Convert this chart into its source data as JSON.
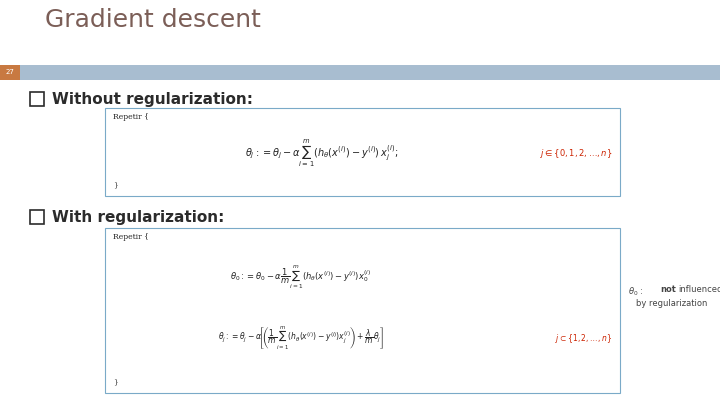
{
  "title": "Gradient descent",
  "slide_number": "27",
  "title_color": "#7B5E57",
  "title_fontsize": 18,
  "slide_number_bg": "#C87941",
  "header_bar_color": "#A8BDD0",
  "bg_color": "#FFFFFF",
  "bullet_color": "#2B2B2B",
  "bullet1_text": "Without regularization:",
  "bullet2_text": "With regularization:",
  "box_edge_color": "#7AAAC8",
  "box_face_color": "#FFFFFF",
  "repetir_text": "Repetir {",
  "close_brace": "}",
  "formula_color": "#222222",
  "red_color": "#CC2200",
  "annotation_color": "#444444"
}
